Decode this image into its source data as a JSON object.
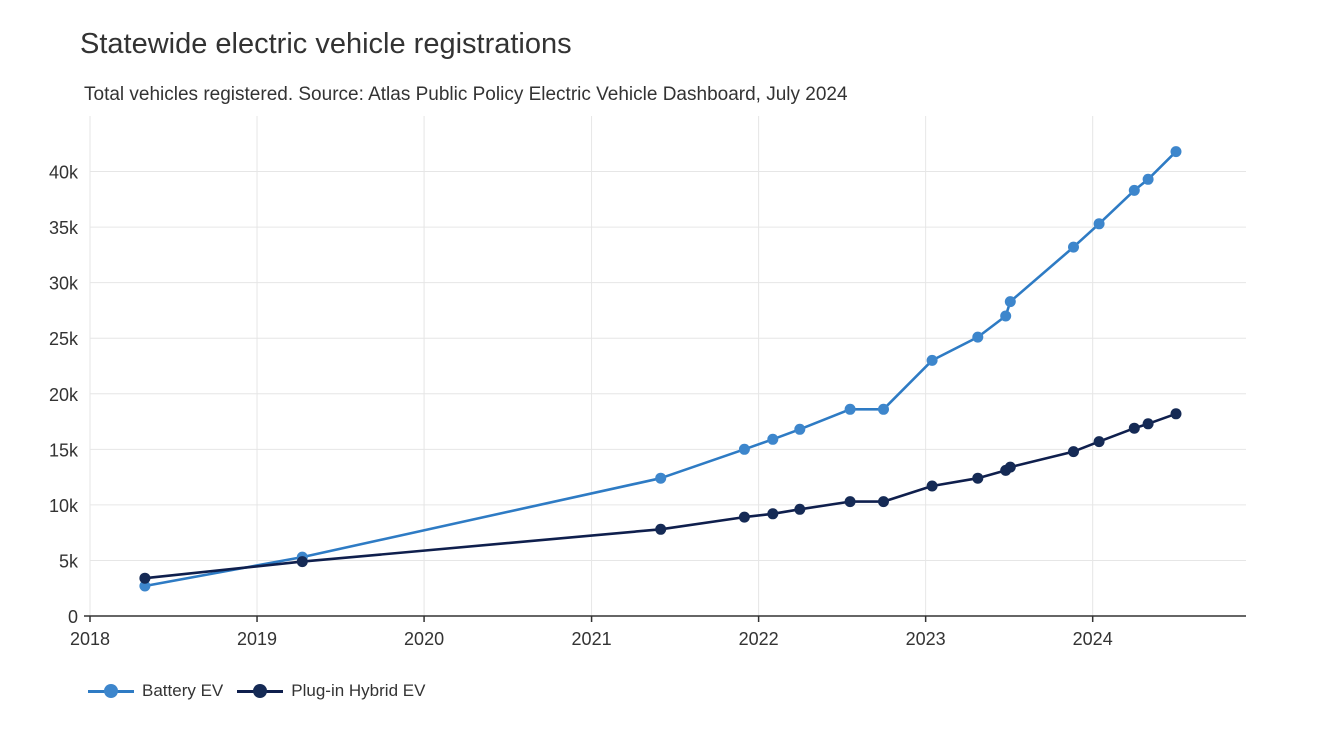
{
  "chart_data": {
    "type": "line",
    "title": "Statewide electric vehicle registrations",
    "subtitle": "Total vehicles registered. Source: Atlas Public Policy Electric Vehicle Dashboard, July 2024",
    "xlabel": "",
    "ylabel": "",
    "x_axis": "date",
    "xlim": [
      "2018-01-01",
      "2024-12-01"
    ],
    "ylim": [
      0,
      45000
    ],
    "x_ticks": [
      "2018",
      "2019",
      "2020",
      "2021",
      "2022",
      "2023",
      "2024"
    ],
    "y_ticks": [
      0,
      5000,
      10000,
      15000,
      20000,
      25000,
      30000,
      35000,
      40000
    ],
    "y_tick_labels": [
      "0",
      "5k",
      "10k",
      "15k",
      "20k",
      "25k",
      "30k",
      "35k",
      "40k"
    ],
    "grid": true,
    "legend_position": "bottom-left",
    "series": [
      {
        "name": "Battery EV",
        "color": "#2e7bc4",
        "marker_color": "#3d86cc",
        "points": [
          {
            "x": "2018-05-01",
            "y": 2700
          },
          {
            "x": "2019-04-10",
            "y": 5300
          },
          {
            "x": "2021-06-01",
            "y": 12400
          },
          {
            "x": "2021-12-01",
            "y": 15000
          },
          {
            "x": "2022-02-01",
            "y": 15900
          },
          {
            "x": "2022-04-01",
            "y": 16800
          },
          {
            "x": "2022-07-20",
            "y": 18600
          },
          {
            "x": "2022-10-01",
            "y": 18600
          },
          {
            "x": "2023-01-15",
            "y": 23000
          },
          {
            "x": "2023-04-25",
            "y": 25100
          },
          {
            "x": "2023-06-25",
            "y": 27000
          },
          {
            "x": "2023-07-05",
            "y": 28300
          },
          {
            "x": "2023-11-20",
            "y": 33200
          },
          {
            "x": "2024-01-15",
            "y": 35300
          },
          {
            "x": "2024-04-01",
            "y": 38300
          },
          {
            "x": "2024-05-01",
            "y": 39300
          },
          {
            "x": "2024-07-01",
            "y": 41800
          }
        ]
      },
      {
        "name": "Plug-in Hybrid EV",
        "color": "#0f1f4d",
        "marker_color": "#152a55",
        "points": [
          {
            "x": "2018-05-01",
            "y": 3400
          },
          {
            "x": "2019-04-10",
            "y": 4900
          },
          {
            "x": "2021-06-01",
            "y": 7800
          },
          {
            "x": "2021-12-01",
            "y": 8900
          },
          {
            "x": "2022-02-01",
            "y": 9200
          },
          {
            "x": "2022-04-01",
            "y": 9600
          },
          {
            "x": "2022-07-20",
            "y": 10300
          },
          {
            "x": "2022-10-01",
            "y": 10300
          },
          {
            "x": "2023-01-15",
            "y": 11700
          },
          {
            "x": "2023-04-25",
            "y": 12400
          },
          {
            "x": "2023-06-25",
            "y": 13100
          },
          {
            "x": "2023-07-05",
            "y": 13400
          },
          {
            "x": "2023-11-20",
            "y": 14800
          },
          {
            "x": "2024-01-15",
            "y": 15700
          },
          {
            "x": "2024-04-01",
            "y": 16900
          },
          {
            "x": "2024-05-01",
            "y": 17300
          },
          {
            "x": "2024-07-01",
            "y": 18200
          }
        ]
      }
    ]
  }
}
